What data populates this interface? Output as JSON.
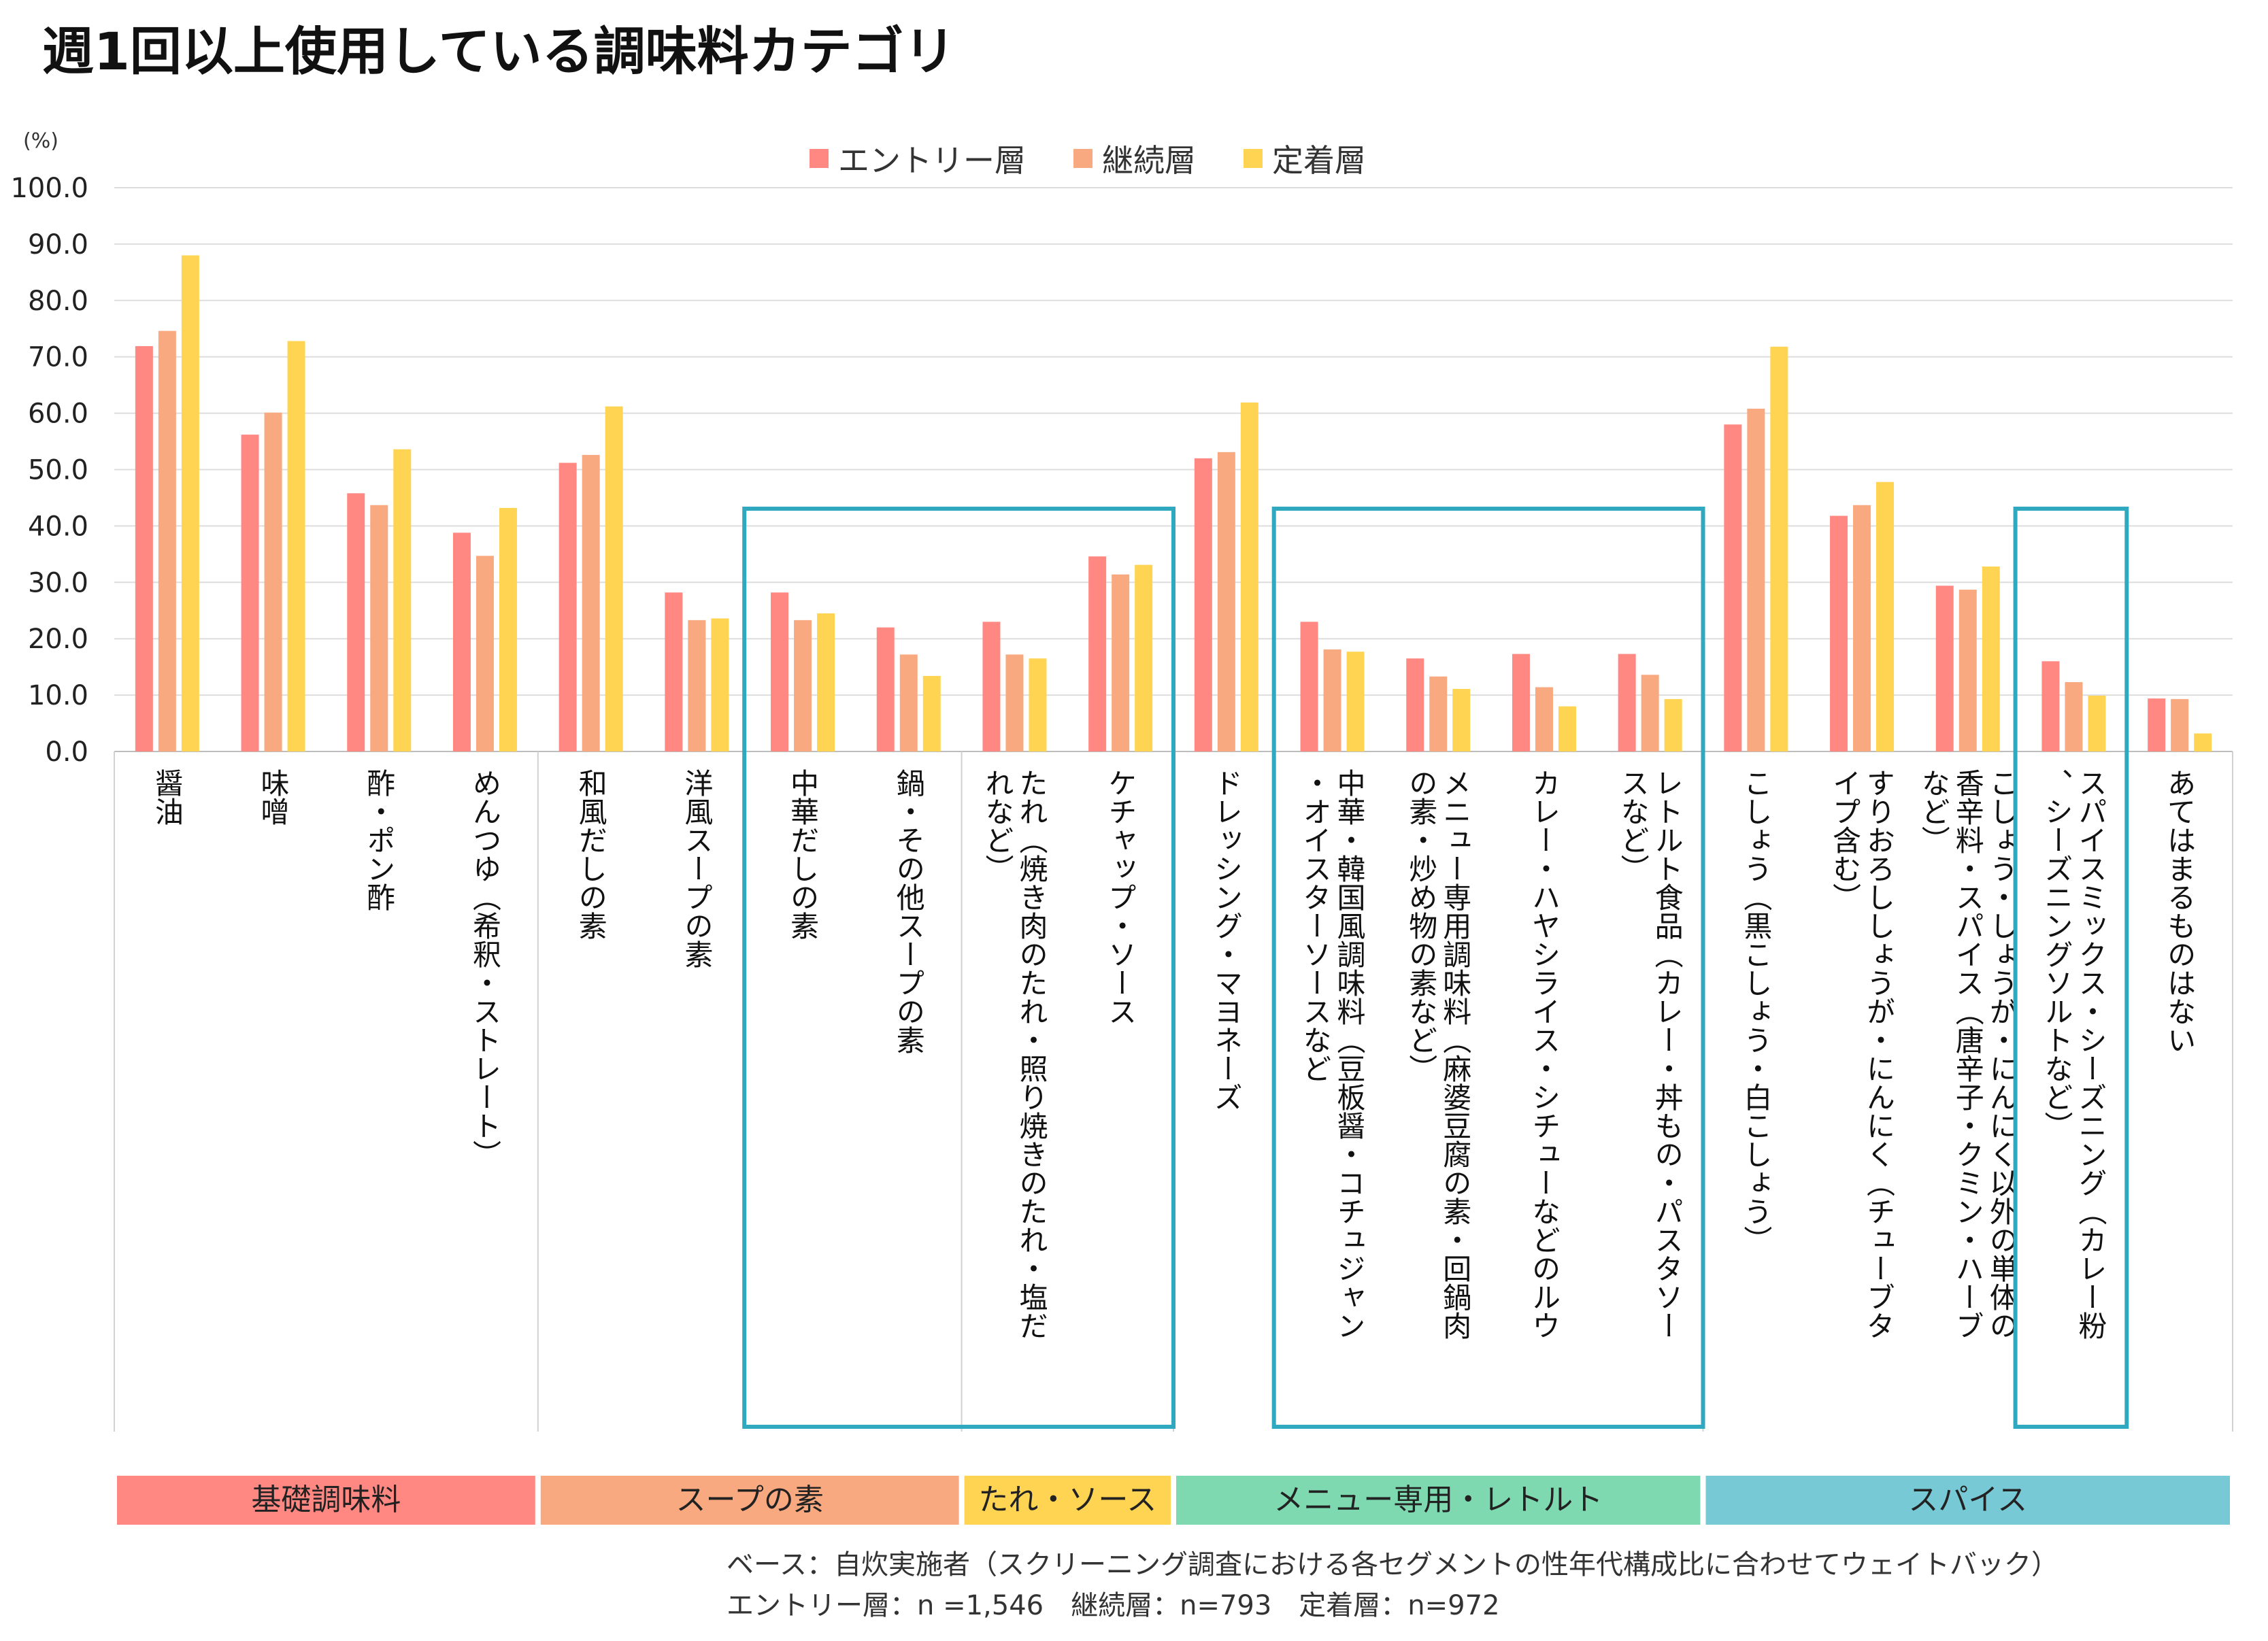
{
  "title": "週1回以上使用している調味料カテゴリ",
  "unit": "(%)",
  "colors": {
    "entry": "#FF8882",
    "continue": "#F9A97F",
    "fixed": "#FFD452",
    "box": "#2FA8C0"
  },
  "notes": {
    "base": "ベース：自炊実施者（スクリーニング調査における各セグメントの性年代構成比に合わせてウェイトバック）",
    "n": "エントリー層：n =1,546　継続層：n=793　定着層：n=972"
  },
  "chart_data": {
    "type": "bar",
    "ylim": [
      0,
      100
    ],
    "yticks": [
      "0.0",
      "10.0",
      "20.0",
      "30.0",
      "40.0",
      "50.0",
      "60.0",
      "70.0",
      "80.0",
      "90.0",
      "100.0"
    ],
    "grid": true,
    "legend_position": "top-center",
    "categories": [
      "醤油",
      "味噌",
      "酢・ポン酢",
      "めんつゆ（希釈・ストレート）",
      "和風だしの素",
      "洋風スープの素",
      "中華だしの素",
      "鍋・その他スープの素",
      "たれ（焼き肉のたれ・照り焼きのたれ・塩だれなど）",
      "ケチャップ・ソース",
      "ドレッシング・マヨネーズ",
      "中華・韓国風調味料（豆板醤・コチュジャン・オイスターソースなど",
      "メニュー専用調味料（麻婆豆腐の素・回鍋肉の素・炒め物の素など）",
      "カレー・ハヤシライス・シチューなどのルウ",
      "レトルト食品（カレー・丼もの・パスタソースなど）",
      "こしょう（黒こしょう・白こしょう）",
      "すりおろししょうが・にんにく（チューブタイプ含む）",
      "こしょう・しょうが・にんにく以外の単体の香辛料・スパイス（唐辛子・クミン・ハーブなど）",
      "スパイスミックス・シーズニング（カレー粉、シーズニングソルトなど）",
      "あてはまるものはない"
    ],
    "series": [
      {
        "name": "エントリー層",
        "values": [
          71.9,
          56.2,
          45.8,
          38.8,
          51.2,
          28.2,
          28.2,
          22.0,
          23.0,
          34.6,
          52.0,
          23.0,
          16.5,
          17.3,
          17.3,
          58.0,
          41.8,
          29.4,
          16.0,
          9.4
        ]
      },
      {
        "name": "継続層",
        "values": [
          74.6,
          60.1,
          43.7,
          34.7,
          52.6,
          23.3,
          23.3,
          17.2,
          17.2,
          31.4,
          53.1,
          18.1,
          13.3,
          11.4,
          13.6,
          60.8,
          43.7,
          28.7,
          12.3,
          9.3
        ]
      },
      {
        "name": "定着層",
        "values": [
          88.0,
          72.8,
          53.6,
          43.2,
          61.2,
          23.6,
          24.5,
          13.4,
          16.5,
          33.1,
          61.9,
          17.7,
          11.1,
          8.0,
          9.3,
          71.8,
          47.8,
          32.8,
          9.9,
          3.2
        ]
      }
    ],
    "groups": [
      {
        "label": "基礎調味料",
        "start": 0,
        "end": 3,
        "color": "#FF8882"
      },
      {
        "label": "スープの素",
        "start": 4,
        "end": 7,
        "color": "#F9A97F"
      },
      {
        "label": "たれ・ソース",
        "start": 8,
        "end": 9,
        "color": "#FFD452"
      },
      {
        "label": "メニュー専用・レトルト",
        "start": 10,
        "end": 14,
        "color": "#7ED8B0"
      },
      {
        "label": "スパイス",
        "start": 15,
        "end": 19,
        "color": "#78C9D6"
      }
    ],
    "highlight_boxes": [
      [
        6,
        9
      ],
      [
        11,
        14
      ],
      [
        18,
        18
      ]
    ]
  }
}
